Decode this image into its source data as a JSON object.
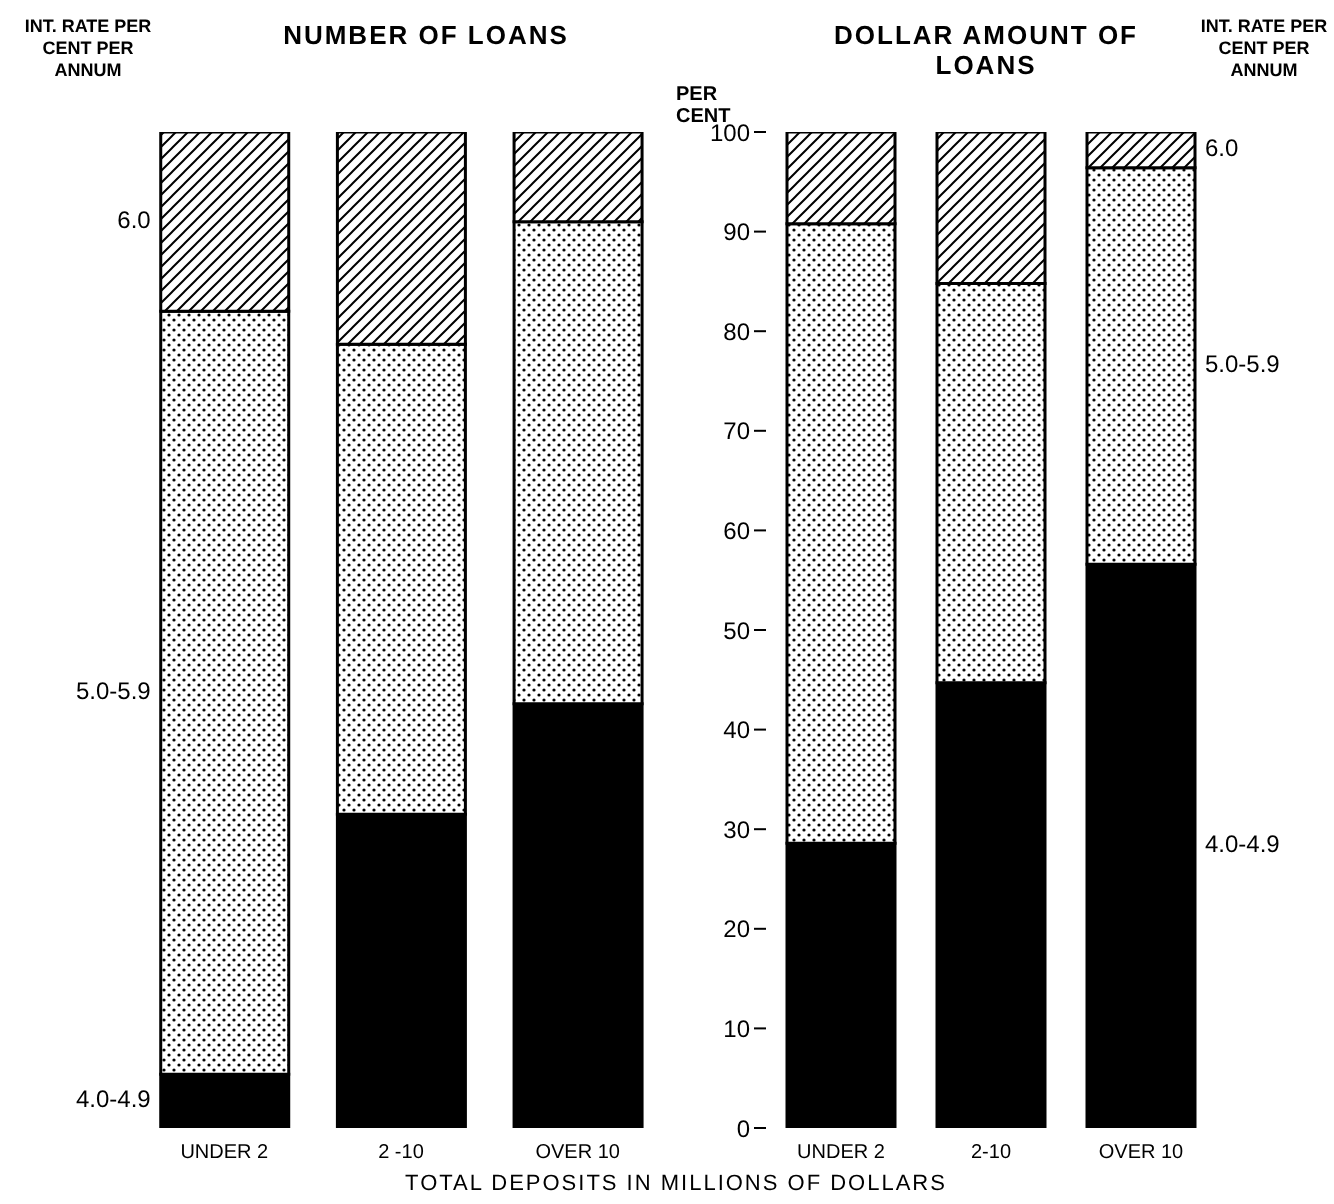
{
  "chart_data": [
    {
      "type": "bar",
      "title": "NUMBER OF LOANS",
      "stacked": true,
      "categories": [
        "UNDER 2",
        "2 -10",
        "OVER 10"
      ],
      "series": [
        {
          "name": "4.0-4.9",
          "color": "#000000",
          "values": [
            5.4,
            31.5,
            42.6
          ]
        },
        {
          "name": "5.0-5.9",
          "color": "#000000",
          "values": [
            76.6,
            47.2,
            48.4
          ]
        },
        {
          "name": "6.0",
          "color": "#000000",
          "values": [
            18,
            21.3,
            9
          ]
        }
      ],
      "ylim": [
        0,
        100
      ],
      "yticks": [
        0,
        10,
        20,
        30,
        40,
        50,
        60,
        70,
        80,
        90,
        100
      ],
      "tick_labels": "x",
      "annotations": [
        "INT. RATE PER CENT PER ANNUM"
      ]
    },
    {
      "type": "bar",
      "title": "DOLLAR AMOUNT OF LOANS",
      "ylabel": "PER CENT",
      "xlabel": "TOTAL DEPOSITS IN MILLIONS OF DOLLARS",
      "stacked": true,
      "categories": [
        "UNDER 2",
        "2-10",
        "OVER 10"
      ],
      "series": [
        {
          "name": "4.0-4.9",
          "color": "#000000",
          "values": [
            28.6,
            44.7,
            56.6
          ]
        },
        {
          "name": "5.0-5.9",
          "color": "#000000",
          "values": [
            62.2,
            40.1,
            39.8
          ]
        },
        {
          "name": "6.0",
          "color": "#000000",
          "values": [
            9.2,
            15.2,
            3.6
          ]
        }
      ],
      "ylim": [
        0,
        100
      ],
      "yticks": [
        0,
        10,
        20,
        30,
        40,
        50,
        60,
        70,
        80,
        90,
        100
      ],
      "annotations": [
        "INT. RATE PER CENT PER ANNUM"
      ]
    }
  ]
}
